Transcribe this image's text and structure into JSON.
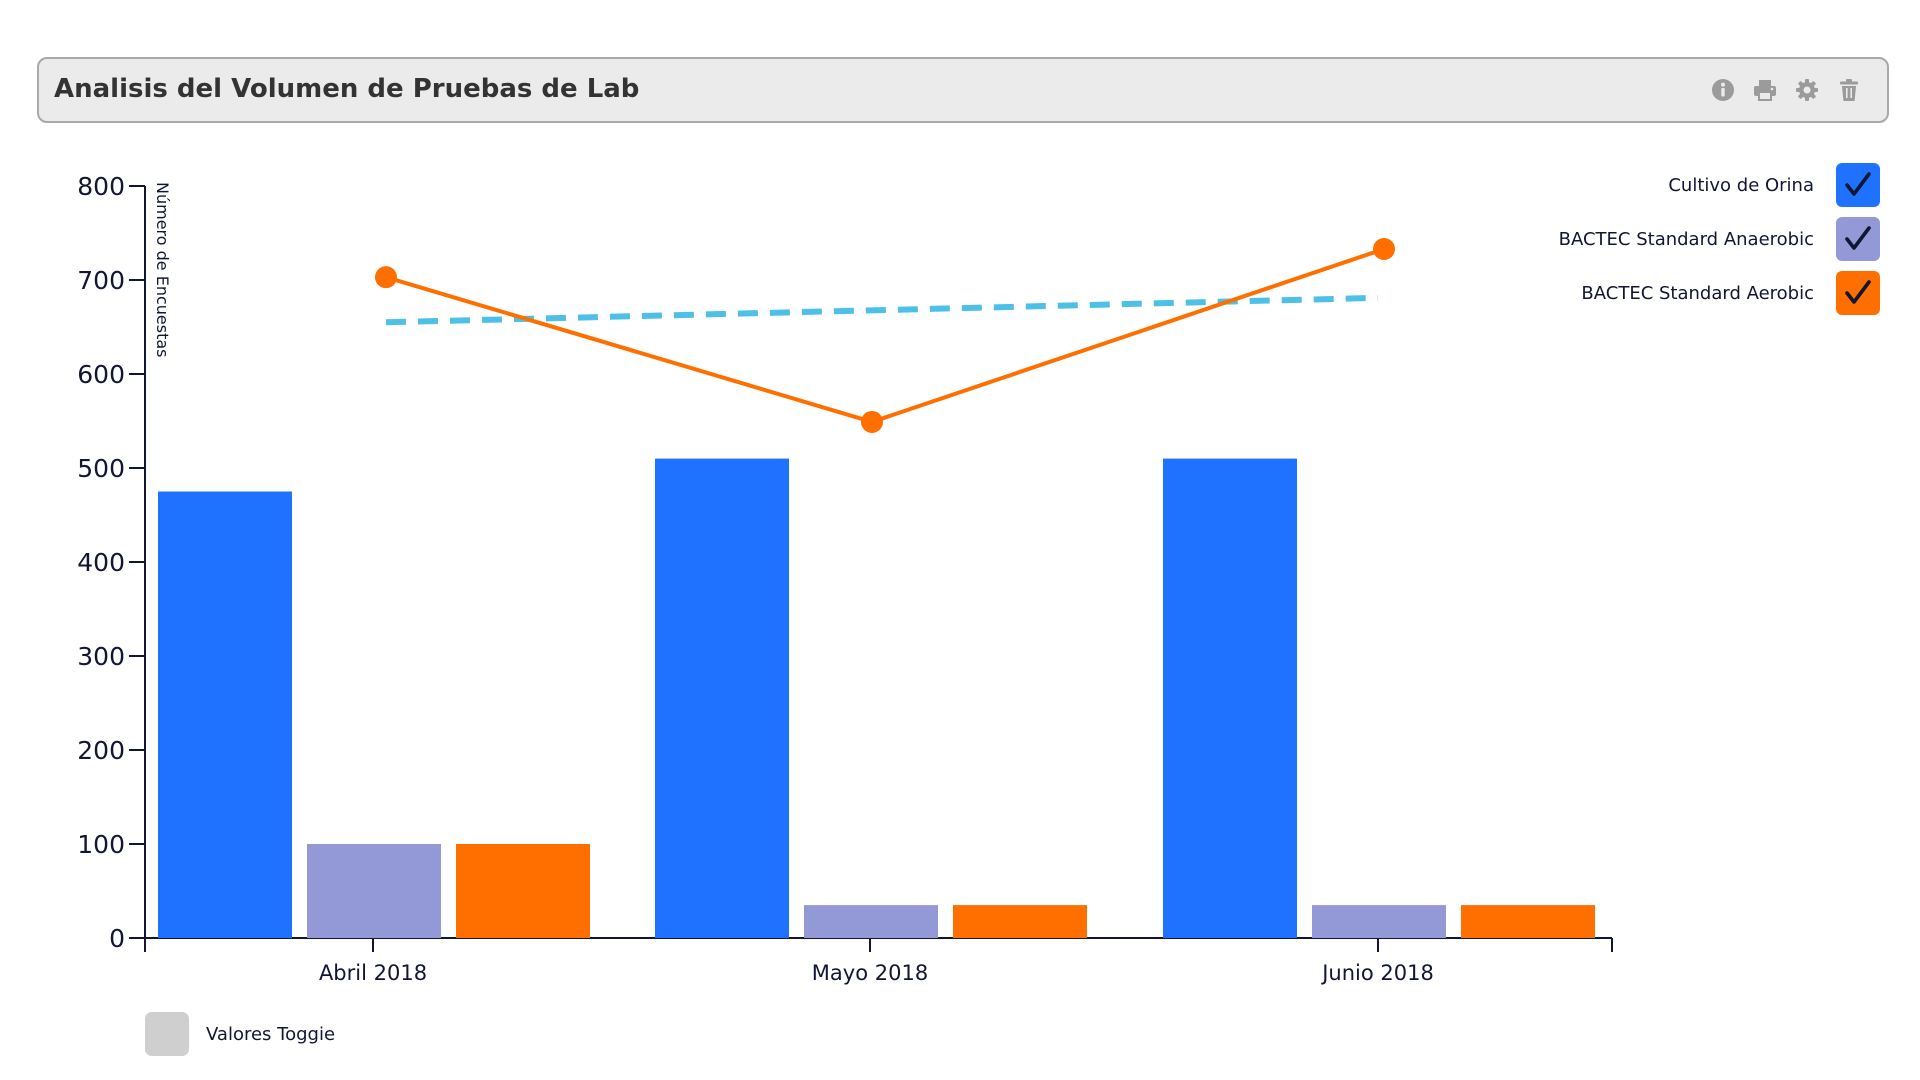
{
  "header": {
    "title": "Analisis del Volumen de Pruebas de Lab",
    "tools": [
      {
        "icon": "info-icon"
      },
      {
        "icon": "print-icon"
      },
      {
        "icon": "gear-icon"
      },
      {
        "icon": "trash-icon"
      }
    ]
  },
  "legend": {
    "items": [
      {
        "label": "Cultivo de Orina",
        "color": "#1f72ff",
        "checked": true
      },
      {
        "label": "BACTEC Standard Anaerobic",
        "color": "#9399d6",
        "checked": true
      },
      {
        "label": "BACTEC Standard Aerobic",
        "color": "#ff6f00",
        "checked": true
      }
    ]
  },
  "toggle": {
    "label": "Valores Toggie"
  },
  "chart_data": {
    "type": "bar",
    "categories": [
      "Abril 2018",
      "Mayo 2018",
      "Junio 2018"
    ],
    "series": [
      {
        "name": "Cultivo de Orina",
        "color": "#1f72ff",
        "values": [
          475,
          510,
          510
        ]
      },
      {
        "name": "BACTEC Standard Anaerobic",
        "color": "#9399d6",
        "values": [
          100,
          35,
          35
        ]
      },
      {
        "name": "BACTEC Standard Aerobic",
        "color": "#ff6f00",
        "values": [
          100,
          35,
          35
        ]
      }
    ],
    "line": {
      "color": "#ff6f00",
      "values": [
        703,
        549,
        733
      ]
    },
    "trend": {
      "color": "#4cc0e6",
      "style": "dashed",
      "values": [
        655,
        668,
        681
      ]
    },
    "ylabel": "Número de Encuestas",
    "xlabel": "",
    "ylim": [
      0,
      800
    ],
    "yticks": [
      0,
      100,
      200,
      300,
      400,
      500,
      600,
      700,
      800
    ],
    "grid": false,
    "legend_position": "top-right"
  }
}
